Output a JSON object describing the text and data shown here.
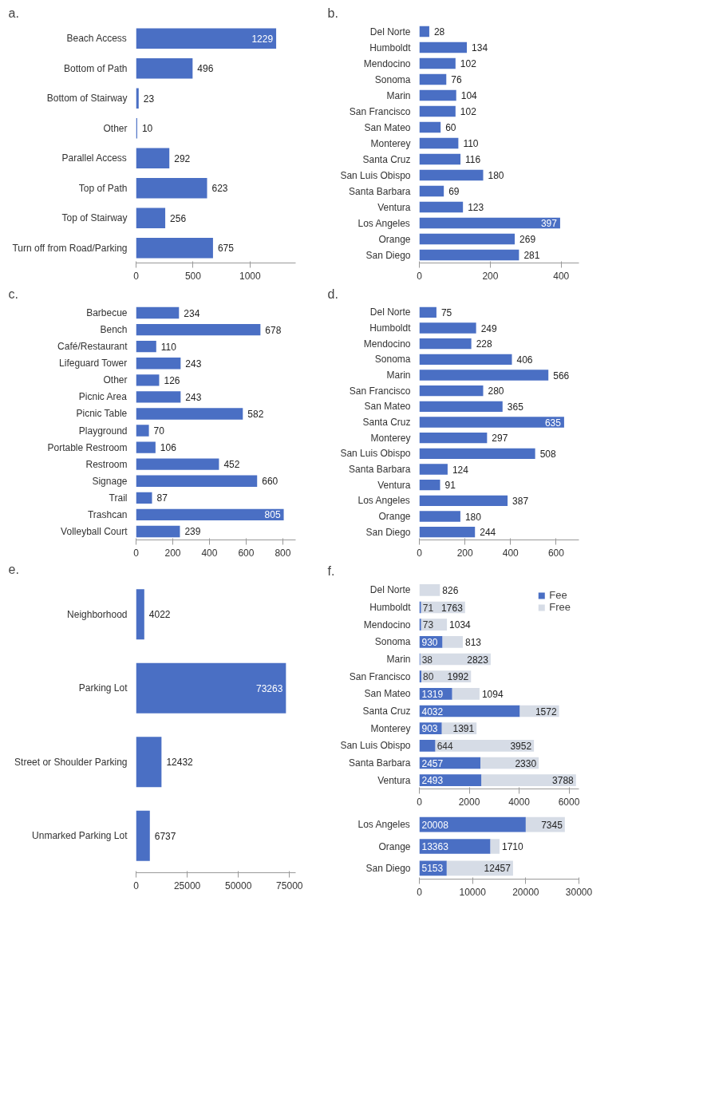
{
  "chart_data": [
    {
      "type": "bar",
      "title": "a.",
      "orientation": "horizontal",
      "categories": [
        "Beach Access",
        "Bottom of Path",
        "Bottom of Stairway",
        "Other",
        "Parallel Access",
        "Top of Path",
        "Top of Stairway",
        "Turn off from Road/Parking"
      ],
      "values": [
        1229,
        496,
        23,
        10,
        292,
        623,
        256,
        675
      ],
      "color": "#4a6fc4",
      "xlim": [
        0,
        1400
      ],
      "xticks": [
        0,
        500,
        1000
      ],
      "data_labels": true
    },
    {
      "type": "bar",
      "title": "b.",
      "orientation": "horizontal",
      "categories": [
        "Del Norte",
        "Humboldt",
        "Mendocino",
        "Sonoma",
        "Marin",
        "San Francisco",
        "San Mateo",
        "Monterey",
        "Santa Cruz",
        "San Luis Obispo",
        "Santa Barbara",
        "Ventura",
        "Los Angeles",
        "Orange",
        "San Diego"
      ],
      "values": [
        28,
        134,
        102,
        76,
        104,
        102,
        60,
        110,
        116,
        180,
        69,
        123,
        397,
        269,
        281
      ],
      "color": "#4a6fc4",
      "xlim": [
        0,
        450
      ],
      "xticks": [
        0,
        200,
        400
      ],
      "data_labels": true
    },
    {
      "type": "bar",
      "title": "c.",
      "orientation": "horizontal",
      "categories": [
        "Barbecue",
        "Bench",
        "Café/Restaurant",
        "Lifeguard Tower",
        "Other",
        "Picnic Area",
        "Picnic Table",
        "Playground",
        "Portable Restroom",
        "Restroom",
        "Signage",
        "Trail",
        "Trashcan",
        "Volleyball Court"
      ],
      "values": [
        234,
        678,
        110,
        243,
        126,
        243,
        582,
        70,
        106,
        452,
        660,
        87,
        805,
        239
      ],
      "color": "#4a6fc4",
      "xlim": [
        0,
        870
      ],
      "xticks": [
        0,
        200,
        400,
        600,
        800
      ],
      "data_labels": true
    },
    {
      "type": "bar",
      "title": "d.",
      "orientation": "horizontal",
      "categories": [
        "Del Norte",
        "Humboldt",
        "Mendocino",
        "Sonoma",
        "Marin",
        "San Francisco",
        "San Mateo",
        "Santa Cruz",
        "Monterey",
        "San Luis Obispo",
        "Santa Barbara",
        "Ventura",
        "Los Angeles",
        "Orange",
        "San Diego"
      ],
      "values": [
        75,
        249,
        228,
        406,
        566,
        280,
        365,
        635,
        297,
        508,
        124,
        91,
        387,
        180,
        244
      ],
      "color": "#4a6fc4",
      "xlim": [
        0,
        700
      ],
      "xticks": [
        0,
        200,
        400,
        600
      ],
      "data_labels": true
    },
    {
      "type": "bar",
      "title": "e.",
      "orientation": "horizontal",
      "categories": [
        "Neighborhood",
        "Parking Lot",
        "Street or Shoulder Parking",
        "Unmarked Parking Lot"
      ],
      "values": [
        4022,
        73263,
        12432,
        6737
      ],
      "color": "#4a6fc4",
      "xlim": [
        0,
        78000
      ],
      "xticks": [
        0,
        25000,
        50000,
        75000
      ],
      "data_labels": true
    },
    {
      "type": "bar",
      "title": "f.",
      "orientation": "horizontal",
      "stacked": true,
      "legend": "top right",
      "categories": [
        "Del Norte",
        "Humboldt",
        "Mendocino",
        "Sonoma",
        "Marin",
        "San Francisco",
        "San Mateo",
        "Santa Cruz",
        "Monterey",
        "San Luis Obispo",
        "Santa Barbara",
        "Ventura"
      ],
      "xlim": [
        0,
        6400
      ],
      "xticks": [
        0,
        2000,
        4000,
        6000
      ],
      "series": [
        {
          "name": "Fee",
          "color": "#4a6fc4",
          "values": [
            0,
            71,
            73,
            930,
            38,
            80,
            1319,
            4032,
            903,
            644,
            2457,
            2493
          ],
          "value_labels": [
            null,
            "71",
            "73",
            "930",
            "38",
            "80",
            "1319",
            "4032",
            "903",
            "644",
            "2457",
            "2493"
          ]
        },
        {
          "name": "Free",
          "color": "#d6dce6",
          "values": [
            826,
            1763,
            1034,
            813,
            2823,
            1992,
            1094,
            1572,
            1391,
            3952,
            2330,
            3788
          ],
          "value_labels": [
            "826",
            "1763",
            "1034",
            "813",
            "2823",
            "1992",
            "1094",
            "1572",
            "1391",
            "3952",
            "2330",
            "3788"
          ]
        }
      ]
    },
    {
      "type": "bar",
      "orientation": "horizontal",
      "stacked": true,
      "categories": [
        "Los Angeles",
        "Orange",
        "San Diego"
      ],
      "xlim": [
        0,
        30000
      ],
      "xticks": [
        0,
        10000,
        20000,
        30000
      ],
      "series": [
        {
          "color": "#4a6fc4",
          "values": [
            20008,
            13363,
            5153
          ],
          "value_labels": [
            "20008",
            "13363",
            "5153"
          ]
        },
        {
          "color": "#d6dce6",
          "values": [
            7345,
            1710,
            12457
          ],
          "value_labels": [
            "7345",
            "1710",
            "12457"
          ]
        }
      ]
    }
  ]
}
